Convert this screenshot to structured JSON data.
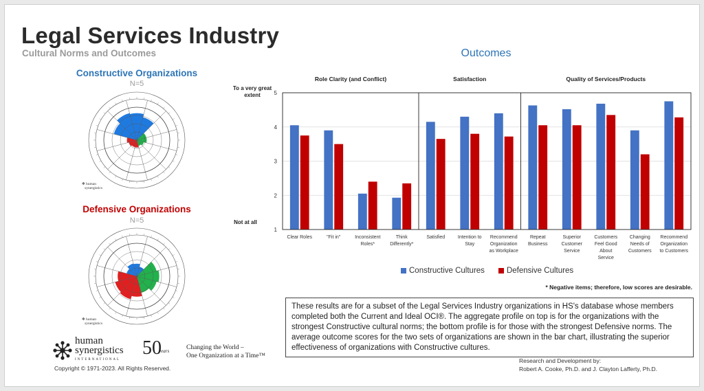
{
  "header": {
    "title": "Legal Services Industry",
    "subtitle": "Cultural Norms and Outcomes"
  },
  "constructive": {
    "heading": "Constructive Organizations",
    "n": "N=5",
    "blue": [
      0.72,
      0.85,
      0.82,
      0.72
    ],
    "green": [
      0.3,
      0.3,
      0.22,
      0.18
    ],
    "red": [
      0.22,
      0.22,
      0.25,
      0.3
    ]
  },
  "defensive": {
    "heading": "Defensive Organizations",
    "n": "N=5",
    "blue": [
      0.32,
      0.4,
      0.38,
      0.3
    ],
    "green": [
      0.62,
      0.68,
      0.62,
      0.52
    ],
    "red": [
      0.62,
      0.72,
      0.68,
      0.58
    ]
  },
  "outcomes_title": "Outcomes",
  "chart_data": {
    "type": "bar",
    "groups": [
      {
        "label": "Role Clarity (and Conflict)",
        "categories": [
          "Clear Roles",
          "\"Fit in\"",
          "Inconsistent Roles*",
          "Think Differently*"
        ]
      },
      {
        "label": "Satisfaction",
        "categories": [
          "Satisfied",
          "Intention to Stay",
          "Recommend Organization as Workplace"
        ]
      },
      {
        "label": "Quality of Services/Products",
        "categories": [
          "Repeat Business",
          "Superior Customer Service",
          "Customers Feel Good About Service",
          "Changing Needs of Customers",
          "Recommend Organization to Customers"
        ]
      }
    ],
    "categories": [
      "Clear Roles",
      "\"Fit in\"",
      "Inconsistent Roles*",
      "Think Differently*",
      "Satisfied",
      "Intention to Stay",
      "Recommend Organization as Workplace",
      "Repeat Business",
      "Superior Customer Service",
      "Customers Feel Good About Service",
      "Changing Needs of Customers",
      "Recommend Organization to Customers"
    ],
    "category_lines": [
      [
        "Clear Roles"
      ],
      [
        "\"Fit in\""
      ],
      [
        "Inconsistent",
        "Roles*"
      ],
      [
        "Think",
        "Differently*"
      ],
      [
        "Satisfied"
      ],
      [
        "Intention to",
        "Stay"
      ],
      [
        "Recommend",
        "Organization",
        "as Workplace"
      ],
      [
        "Repeat",
        "Business"
      ],
      [
        "Superior",
        "Customer",
        "Service"
      ],
      [
        "Customers",
        "Feel Good",
        "About",
        "Service"
      ],
      [
        "Changing",
        "Needs of",
        "Customers"
      ],
      [
        "Recommend",
        "Organization",
        "to Customers"
      ]
    ],
    "series": [
      {
        "name": "Constructive Cultures",
        "color": "#4472c4",
        "values": [
          4.05,
          3.9,
          2.05,
          1.93,
          4.15,
          4.3,
          4.4,
          4.63,
          4.52,
          4.68,
          3.9,
          4.75
        ]
      },
      {
        "name": "Defensive Cultures",
        "color": "#c00000",
        "values": [
          3.75,
          3.5,
          2.4,
          2.35,
          3.65,
          3.8,
          3.72,
          4.05,
          4.05,
          4.35,
          3.2,
          4.28
        ]
      }
    ],
    "ylim": [
      1,
      5
    ],
    "yticks": [
      "1",
      "2",
      "3",
      "4",
      "5"
    ],
    "y_top_label": [
      "To a very great",
      "extent"
    ],
    "y_bottom_label": "Not at all"
  },
  "note": "* Negative items; therefore, low scores are desirable.",
  "description": "These results are for a subset of the Legal Services Industry organizations in HS's database whose members completed both the Current and Ideal OCI®. The aggregate profile on top is for the organizations with the strongest Constructive cultural norms; the bottom profile is for those with the strongest Defensive norms. The average outcome scores for the two sets of organizations are shown in the bar chart, illustrating the superior effectiveness of organizations with Constructive cultures.",
  "credits": {
    "line1": "Research and Development by:",
    "line2": "Robert A. Cooke, Ph.D. and J. Clayton Lafferty, Ph.D."
  },
  "footer": {
    "copyright": "Copyright © 1971-2023.  All Rights Reserved.",
    "logo_line1": "human",
    "logo_line2": "synergistics",
    "logo_line3": "INTERNATIONAL",
    "fifty": "50",
    "fifty_years": "years",
    "tagline1": "Changing the World –",
    "tagline2": "One Organization at a Time™"
  },
  "colors": {
    "constructive_blue": "#2e75b6",
    "defensive_red": "#c00000",
    "circumplex_blue": "#1f7ae0",
    "circumplex_green": "#22b14c",
    "circumplex_red": "#e02020"
  }
}
